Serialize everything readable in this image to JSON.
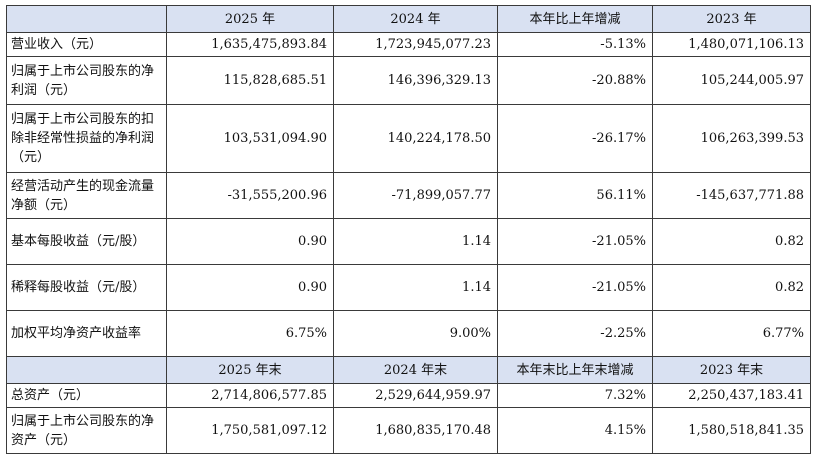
{
  "header1": [
    "",
    "2025 年",
    "2024 年",
    "本年比上年增减",
    "2023 年"
  ],
  "rows1": [
    {
      "label": "营业收入（元）",
      "v": [
        "1,635,475,893.84",
        "1,723,945,077.23",
        "-5.13%",
        "1,480,071,106.13"
      ]
    },
    {
      "label": "归属于上市公司股东的净利润（元）",
      "v": [
        "115,828,685.51",
        "146,396,329.13",
        "-20.88%",
        "105,244,005.97"
      ]
    },
    {
      "label": "归属于上市公司股东的扣除非经常性损益的净利润（元）",
      "v": [
        "103,531,094.90",
        "140,224,178.50",
        "-26.17%",
        "106,263,399.53"
      ]
    },
    {
      "label": "经营活动产生的现金流量净额（元）",
      "v": [
        "-31,555,200.96",
        "-71,899,057.77",
        "56.11%",
        "-145,637,771.88"
      ]
    },
    {
      "label": "基本每股收益（元/股）",
      "v": [
        "0.90",
        "1.14",
        "-21.05%",
        "0.82"
      ]
    },
    {
      "label": "稀释每股收益（元/股）",
      "v": [
        "0.90",
        "1.14",
        "-21.05%",
        "0.82"
      ]
    },
    {
      "label": "加权平均净资产收益率",
      "v": [
        "6.75%",
        "9.00%",
        "-2.25%",
        "6.77%"
      ]
    }
  ],
  "header2": [
    "",
    "2025 年末",
    "2024 年末",
    "本年末比上年末增减",
    "2023 年末"
  ],
  "rows2": [
    {
      "label": "总资产（元）",
      "v": [
        "2,714,806,577.85",
        "2,529,644,959.97",
        "7.32%",
        "2,250,437,183.41"
      ]
    },
    {
      "label": "归属于上市公司股东的净资产（元）",
      "v": [
        "1,750,581,097.12",
        "1,680,835,170.48",
        "4.15%",
        "1,580,518,841.35"
      ]
    }
  ]
}
